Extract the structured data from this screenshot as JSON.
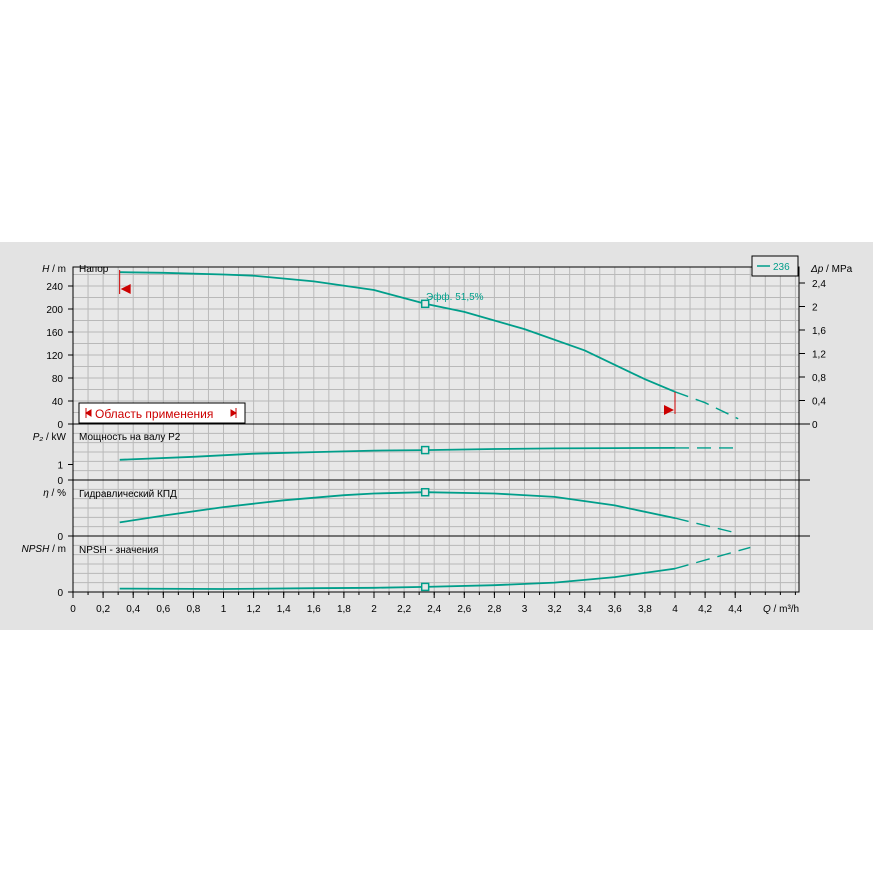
{
  "colors": {
    "background": "#e3e3e3",
    "plot": "#e8e8e8",
    "grid": "#b9b9b9",
    "axis": "#000000",
    "curve": "#009e8a",
    "marker": "#cc0000"
  },
  "chart_data": {
    "type": "line",
    "x": {
      "label_var": "Q",
      "label_unit": "/ m³/h",
      "range": [
        0,
        4.85
      ],
      "ticks": [
        "0",
        "0,2",
        "0,4",
        "0,6",
        "0,8",
        "1",
        "1,2",
        "1,4",
        "1,6",
        "1,8",
        "2",
        "2,2",
        "2,4",
        "2,6",
        "2,8",
        "3",
        "3,2",
        "3,4",
        "3,6",
        "3,8",
        "4",
        "4,2",
        "4,4"
      ]
    },
    "legend": {
      "entries": [
        "236"
      ],
      "position": "top-right"
    },
    "grid": true,
    "operating_point": {
      "x": 2.34
    },
    "panels": [
      {
        "id": "head",
        "ylabel_var": "H",
        "ylabel_unit": "/ m",
        "title": "Напор",
        "ylim": [
          0,
          270
        ],
        "yticks": [
          "0",
          "40",
          "80",
          "120",
          "160",
          "200",
          "240"
        ],
        "right_axis": {
          "label_var": "Δp",
          "label_unit": "/ MPa",
          "ticks": [
            "0",
            "0,4",
            "0,8",
            "1,2",
            "1,6",
            "2",
            "2,4"
          ]
        },
        "series": [
          {
            "name": "236",
            "solid": [
              [
                0.31,
                264
              ],
              [
                0.6,
                263
              ],
              [
                1.0,
                260
              ],
              [
                1.2,
                258
              ],
              [
                1.6,
                248
              ],
              [
                2.0,
                233
              ],
              [
                2.34,
                209
              ],
              [
                2.6,
                195
              ],
              [
                3.0,
                165
              ],
              [
                3.4,
                128
              ],
              [
                3.8,
                78
              ],
              [
                4.0,
                56
              ]
            ],
            "dashed": [
              [
                4.0,
                56
              ],
              [
                4.2,
                37
              ],
              [
                4.42,
                9
              ]
            ]
          }
        ],
        "efficiency_label": "Эфф.  51,5%",
        "range_label": "Область применения",
        "range_limits": [
          0.31,
          4.0
        ]
      },
      {
        "id": "power",
        "ylabel_var": "P₂",
        "ylabel_unit": "/ kW",
        "title": "Мощность на валу P2",
        "ylim": [
          0,
          2.1
        ],
        "yticks": [
          "0",
          "1"
        ],
        "series": [
          {
            "name": "236",
            "solid": [
              [
                0.31,
                1.3
              ],
              [
                0.8,
                1.5
              ],
              [
                1.2,
                1.7
              ],
              [
                1.6,
                1.8
              ],
              [
                2.0,
                1.9
              ],
              [
                2.34,
                1.93
              ],
              [
                2.8,
                2.0
              ],
              [
                3.2,
                2.04
              ],
              [
                3.6,
                2.06
              ],
              [
                4.0,
                2.07
              ]
            ],
            "dashed": [
              [
                4.0,
                2.07
              ],
              [
                4.42,
                2.07
              ]
            ]
          }
        ]
      },
      {
        "id": "efficiency",
        "ylabel_var": "η",
        "ylabel_unit": "/ %",
        "title": "Гидравлический КПД",
        "ylim": [
          0,
          60
        ],
        "yticks": [
          "0"
        ],
        "series": [
          {
            "name": "236",
            "solid": [
              [
                0.31,
                16
              ],
              [
                0.6,
                24
              ],
              [
                1.0,
                34
              ],
              [
                1.4,
                42
              ],
              [
                1.8,
                48
              ],
              [
                2.0,
                50
              ],
              [
                2.34,
                51.5
              ],
              [
                2.8,
                50
              ],
              [
                3.2,
                46
              ],
              [
                3.6,
                36
              ],
              [
                4.0,
                21
              ]
            ],
            "dashed": [
              [
                4.0,
                21
              ],
              [
                4.42,
                3
              ]
            ]
          }
        ]
      },
      {
        "id": "npsh",
        "ylabel_var": "NPSH",
        "ylabel_unit": "/ m",
        "title": "NPSH - значения",
        "ylim": [
          0,
          12
        ],
        "yticks": [
          "0"
        ],
        "series": [
          {
            "name": "236",
            "solid": [
              [
                0.31,
                0.8
              ],
              [
                1.0,
                0.7
              ],
              [
                1.6,
                0.9
              ],
              [
                2.0,
                1.0
              ],
              [
                2.34,
                1.2
              ],
              [
                2.8,
                1.6
              ],
              [
                3.2,
                2.2
              ],
              [
                3.6,
                3.5
              ],
              [
                4.0,
                5.5
              ]
            ],
            "dashed": [
              [
                4.0,
                5.5
              ],
              [
                4.5,
                10.5
              ]
            ]
          }
        ]
      }
    ]
  }
}
